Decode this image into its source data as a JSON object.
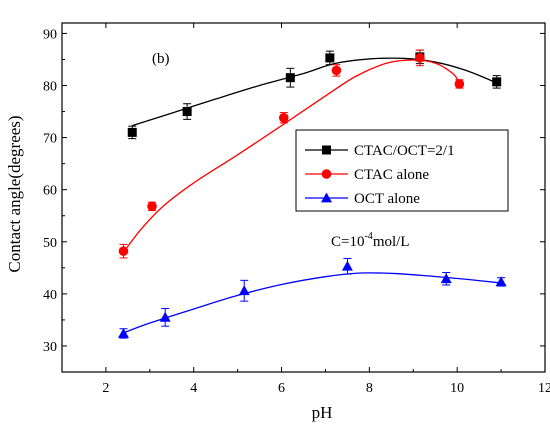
{
  "chart_data": {
    "type": "scatter",
    "panel_label": "(b)",
    "xlabel": "pH",
    "ylabel": "Contact angle(degrees)",
    "xlim": [
      1,
      12
    ],
    "ylim": [
      25,
      92
    ],
    "x_ticks": [
      2,
      4,
      6,
      8,
      10,
      12
    ],
    "x_tick_labels": [
      "2",
      "4",
      "6",
      "8",
      "10",
      "12"
    ],
    "y_ticks": [
      30,
      40,
      50,
      60,
      70,
      80,
      90
    ],
    "y_tick_labels": [
      "30",
      "40",
      "50",
      "60",
      "70",
      "80",
      "90"
    ],
    "grid": false,
    "legend_position": "right",
    "annotation": {
      "base": "C=10",
      "exponent": "-4",
      "unit": "mol/L"
    },
    "series": [
      {
        "name": "CTAC/OCT=2/1",
        "color": "#000000",
        "marker": "square",
        "x": [
          2.6,
          3.85,
          6.2,
          7.1,
          9.15,
          10.9
        ],
        "y": [
          71.0,
          75.0,
          81.5,
          85.3,
          85.5,
          80.7
        ],
        "err": [
          1.2,
          1.5,
          1.8,
          1.3,
          1.3,
          1.2
        ],
        "fit": [
          [
            2.6,
            72.3
          ],
          [
            3.5,
            74.7
          ],
          [
            4.5,
            77.4
          ],
          [
            5.5,
            80.0
          ],
          [
            6.5,
            82.3
          ],
          [
            7.2,
            84.2
          ],
          [
            8.0,
            85.1
          ],
          [
            8.8,
            85.2
          ],
          [
            9.5,
            84.5
          ],
          [
            10.2,
            82.9
          ],
          [
            10.9,
            80.5
          ]
        ]
      },
      {
        "name": "CTAC alone",
        "color": "#ff0000",
        "marker": "circle",
        "x": [
          2.4,
          3.05,
          6.05,
          7.25,
          9.15,
          10.05
        ],
        "y": [
          48.2,
          56.8,
          73.8,
          82.9,
          85.3,
          80.3
        ],
        "err": [
          1.3,
          0.8,
          1.0,
          1.1,
          1.5,
          0.8
        ],
        "fit": [
          [
            2.4,
            48.0
          ],
          [
            2.8,
            52.4
          ],
          [
            3.3,
            56.8
          ],
          [
            4.0,
            61.3
          ],
          [
            5.0,
            66.7
          ],
          [
            6.0,
            72.3
          ],
          [
            7.0,
            78.0
          ],
          [
            7.7,
            81.8
          ],
          [
            8.4,
            84.3
          ],
          [
            9.0,
            84.9
          ],
          [
            9.5,
            84.3
          ],
          [
            9.9,
            82.3
          ],
          [
            10.05,
            80.5
          ]
        ]
      },
      {
        "name": "OCT alone",
        "color": "#0000ff",
        "marker": "triangle",
        "x": [
          2.4,
          3.35,
          5.15,
          7.5,
          9.75,
          11.0
        ],
        "y": [
          32.4,
          35.5,
          40.6,
          45.3,
          42.9,
          42.3
        ],
        "err": [
          0.9,
          1.7,
          2.0,
          1.5,
          1.2,
          0.8
        ],
        "fit": [
          [
            2.4,
            32.5
          ],
          [
            3.0,
            34.4
          ],
          [
            4.0,
            37.1
          ],
          [
            5.0,
            39.7
          ],
          [
            6.0,
            41.8
          ],
          [
            7.0,
            43.3
          ],
          [
            7.8,
            44.0
          ],
          [
            8.6,
            43.9
          ],
          [
            9.4,
            43.4
          ],
          [
            10.2,
            42.8
          ],
          [
            11.0,
            42.1
          ]
        ]
      }
    ]
  }
}
